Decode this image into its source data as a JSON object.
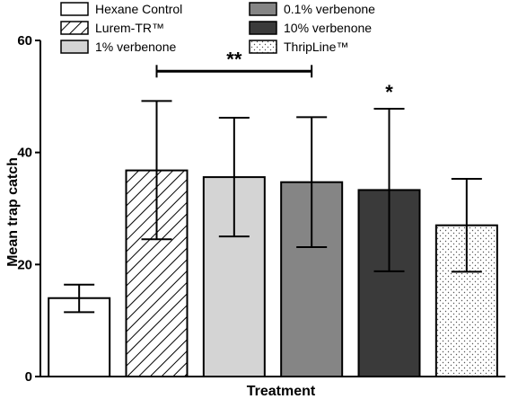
{
  "chart_data": {
    "type": "bar",
    "title": "",
    "xlabel": "Treatment",
    "ylabel": "Mean trap catch",
    "ylim": [
      0,
      60
    ],
    "yticks": [
      0,
      20,
      40,
      60
    ],
    "grid": false,
    "legend_position": "top",
    "categories": [
      "Hexane Control",
      "Lurem-TR™",
      "1% verbenone",
      "0.1% verbenone",
      "10% verbenone",
      "ThripLine™"
    ],
    "values": [
      14.0,
      36.8,
      35.6,
      34.7,
      33.3,
      27.0
    ],
    "error_bars": [
      {
        "low": 11.5,
        "high": 16.4
      },
      {
        "low": 24.5,
        "high": 49.2
      },
      {
        "low": 25.0,
        "high": 46.2
      },
      {
        "low": 23.1,
        "high": 46.3
      },
      {
        "low": 18.8,
        "high": 47.8
      },
      {
        "low": 18.7,
        "high": 35.3
      }
    ],
    "fills": [
      "white",
      "diagonal-hatch",
      "#d4d4d4",
      "#858585",
      "#3a3a3a",
      "dots"
    ],
    "annotations": [
      {
        "text": "**",
        "type": "bracket",
        "from_category": 1,
        "to_category": 3,
        "y": 54.5
      },
      {
        "text": "*",
        "type": "marker",
        "category": 4,
        "y": 51.5
      }
    ]
  }
}
